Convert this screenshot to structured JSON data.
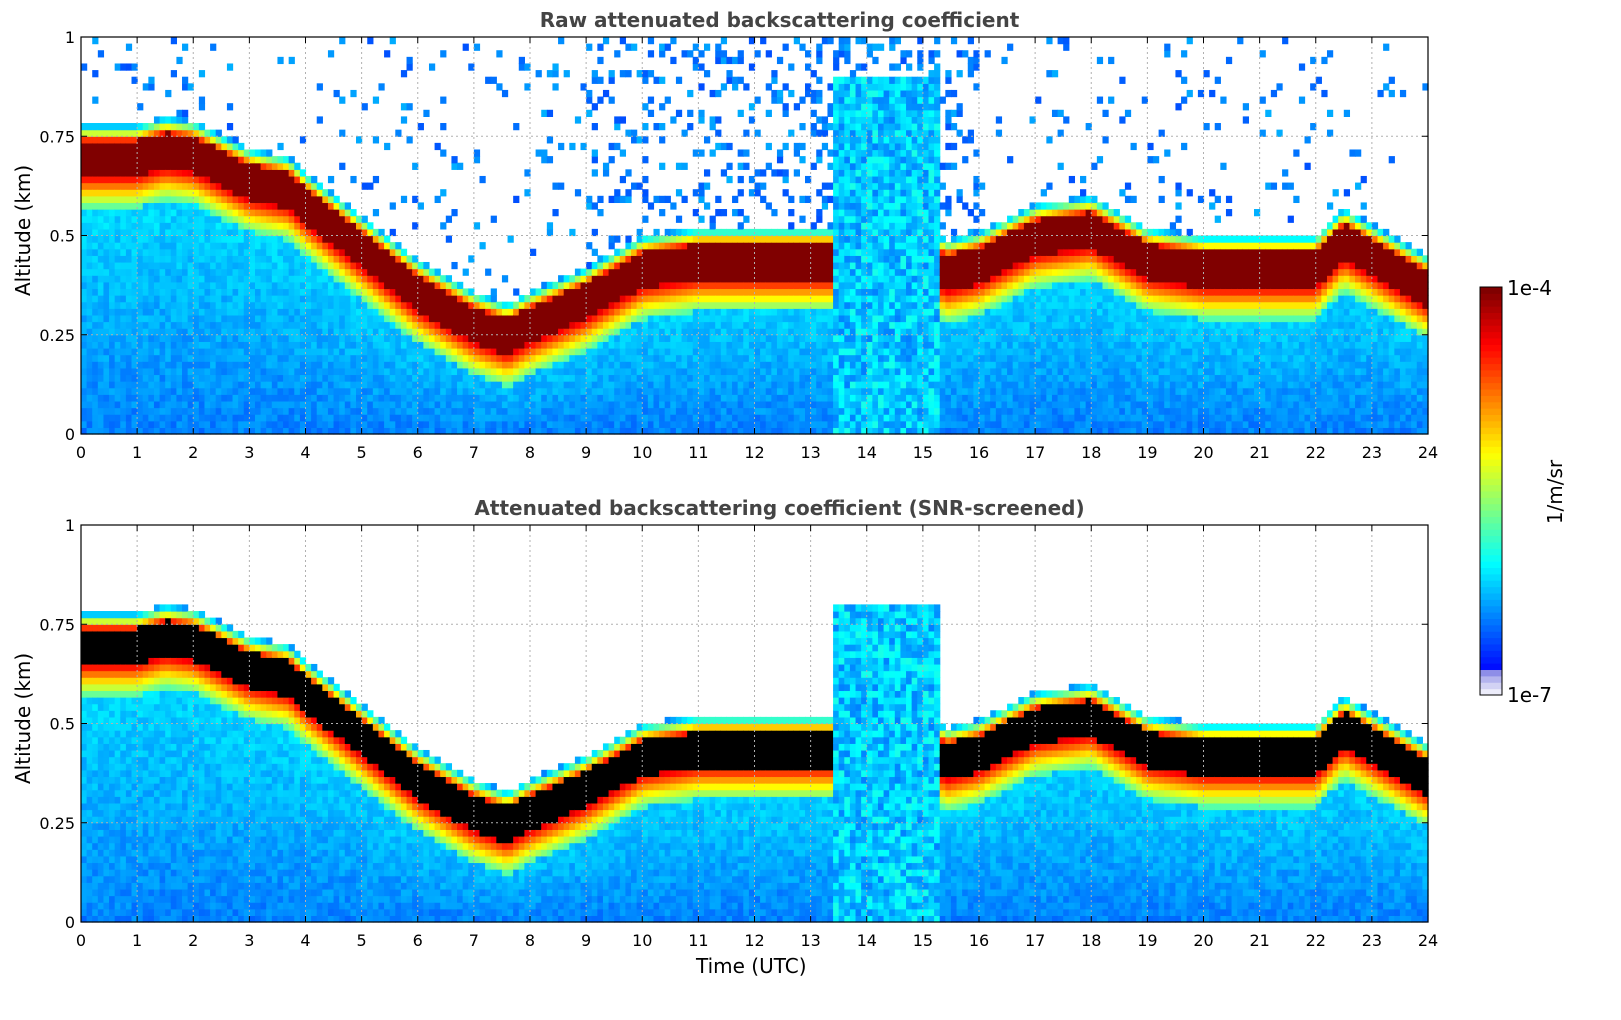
{
  "chart_data": [
    {
      "type": "heatmap",
      "title": "Raw attenuated backscattering coefficient",
      "xlabel": "",
      "ylabel": "Altitude (km)",
      "xlim": [
        0,
        24
      ],
      "ylim": [
        0,
        1
      ],
      "xticks": [
        "0",
        "1",
        "2",
        "3",
        "4",
        "5",
        "6",
        "7",
        "8",
        "9",
        "10",
        "11",
        "12",
        "13",
        "14",
        "15",
        "16",
        "17",
        "18",
        "19",
        "20",
        "21",
        "22",
        "23",
        "24"
      ],
      "yticks": [
        "0",
        "0.25",
        "0.5",
        "0.75",
        "1"
      ],
      "grid": true,
      "screened": false
    },
    {
      "type": "heatmap",
      "title": "Attenuated backscattering coefficient (SNR-screened)",
      "xlabel": "Time (UTC)",
      "ylabel": "Altitude (km)",
      "xlim": [
        0,
        24
      ],
      "ylim": [
        0,
        1
      ],
      "xticks": [
        "0",
        "1",
        "2",
        "3",
        "4",
        "5",
        "6",
        "7",
        "8",
        "9",
        "10",
        "11",
        "12",
        "13",
        "14",
        "15",
        "16",
        "17",
        "18",
        "19",
        "20",
        "21",
        "22",
        "23",
        "24"
      ],
      "yticks": [
        "0",
        "0.25",
        "0.5",
        "0.75",
        "1"
      ],
      "grid": true,
      "screened": true
    }
  ],
  "colorbar": {
    "label": "1/m/sr",
    "max_label": "1e-4",
    "min_label": "1e-7",
    "colormap": "jet",
    "scale": "log"
  }
}
